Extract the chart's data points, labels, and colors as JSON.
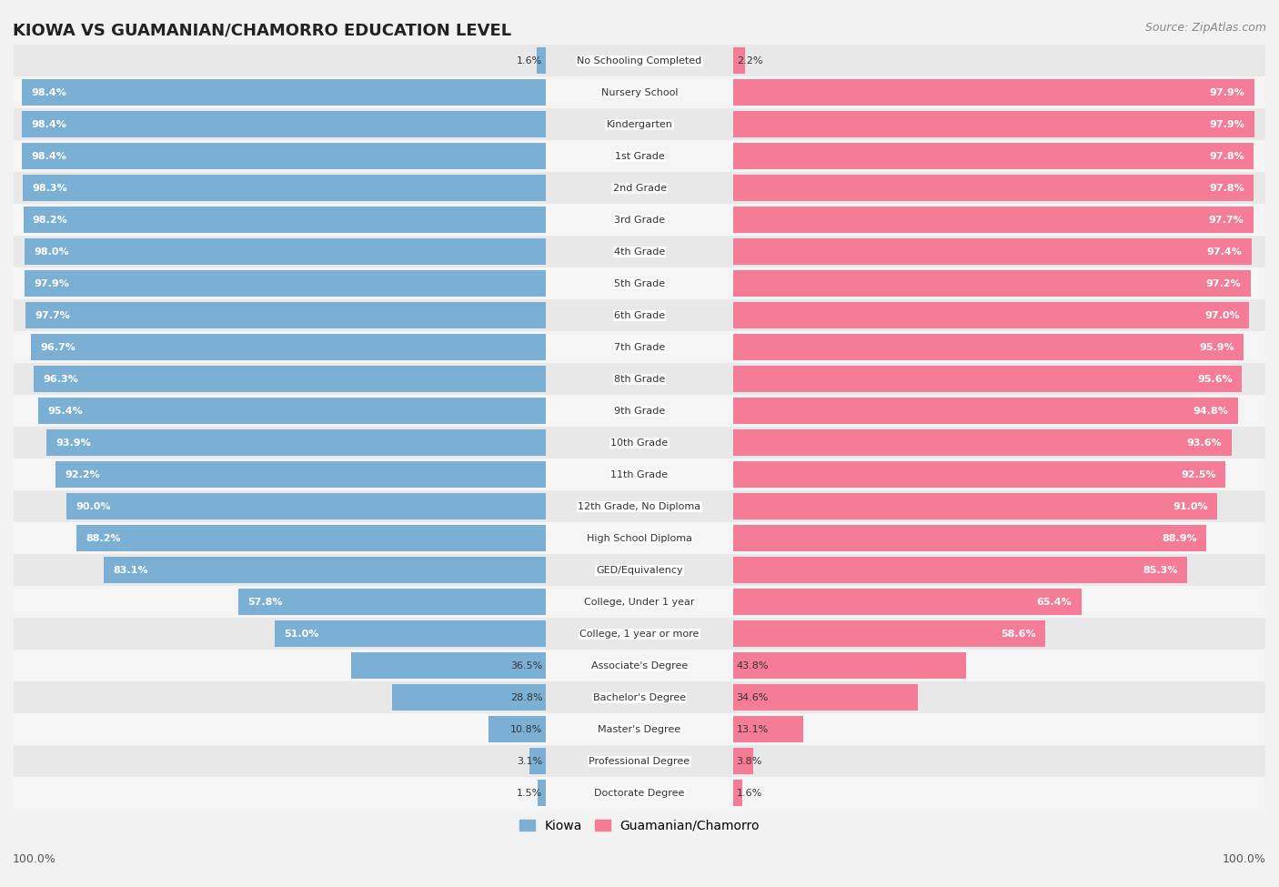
{
  "title": "KIOWA VS GUAMANIAN/CHAMORRO EDUCATION LEVEL",
  "source": "Source: ZipAtlas.com",
  "categories": [
    "No Schooling Completed",
    "Nursery School",
    "Kindergarten",
    "1st Grade",
    "2nd Grade",
    "3rd Grade",
    "4th Grade",
    "5th Grade",
    "6th Grade",
    "7th Grade",
    "8th Grade",
    "9th Grade",
    "10th Grade",
    "11th Grade",
    "12th Grade, No Diploma",
    "High School Diploma",
    "GED/Equivalency",
    "College, Under 1 year",
    "College, 1 year or more",
    "Associate's Degree",
    "Bachelor's Degree",
    "Master's Degree",
    "Professional Degree",
    "Doctorate Degree"
  ],
  "kiowa": [
    1.6,
    98.4,
    98.4,
    98.4,
    98.3,
    98.2,
    98.0,
    97.9,
    97.7,
    96.7,
    96.3,
    95.4,
    93.9,
    92.2,
    90.0,
    88.2,
    83.1,
    57.8,
    51.0,
    36.5,
    28.8,
    10.8,
    3.1,
    1.5
  ],
  "guamanian": [
    2.2,
    97.9,
    97.9,
    97.8,
    97.8,
    97.7,
    97.4,
    97.2,
    97.0,
    95.9,
    95.6,
    94.8,
    93.6,
    92.5,
    91.0,
    88.9,
    85.3,
    65.4,
    58.6,
    43.8,
    34.6,
    13.1,
    3.8,
    1.6
  ],
  "kiowa_color": "#7bafd4",
  "guamanian_color": "#f47c96",
  "bg_color": "#f2f2f2",
  "row_colors": [
    "#e8e8e8",
    "#f5f5f5"
  ],
  "legend_kiowa": "Kiowa",
  "legend_guamanian": "Guamanian/Chamorro",
  "figsize": [
    14.06,
    9.75
  ],
  "dpi": 100
}
